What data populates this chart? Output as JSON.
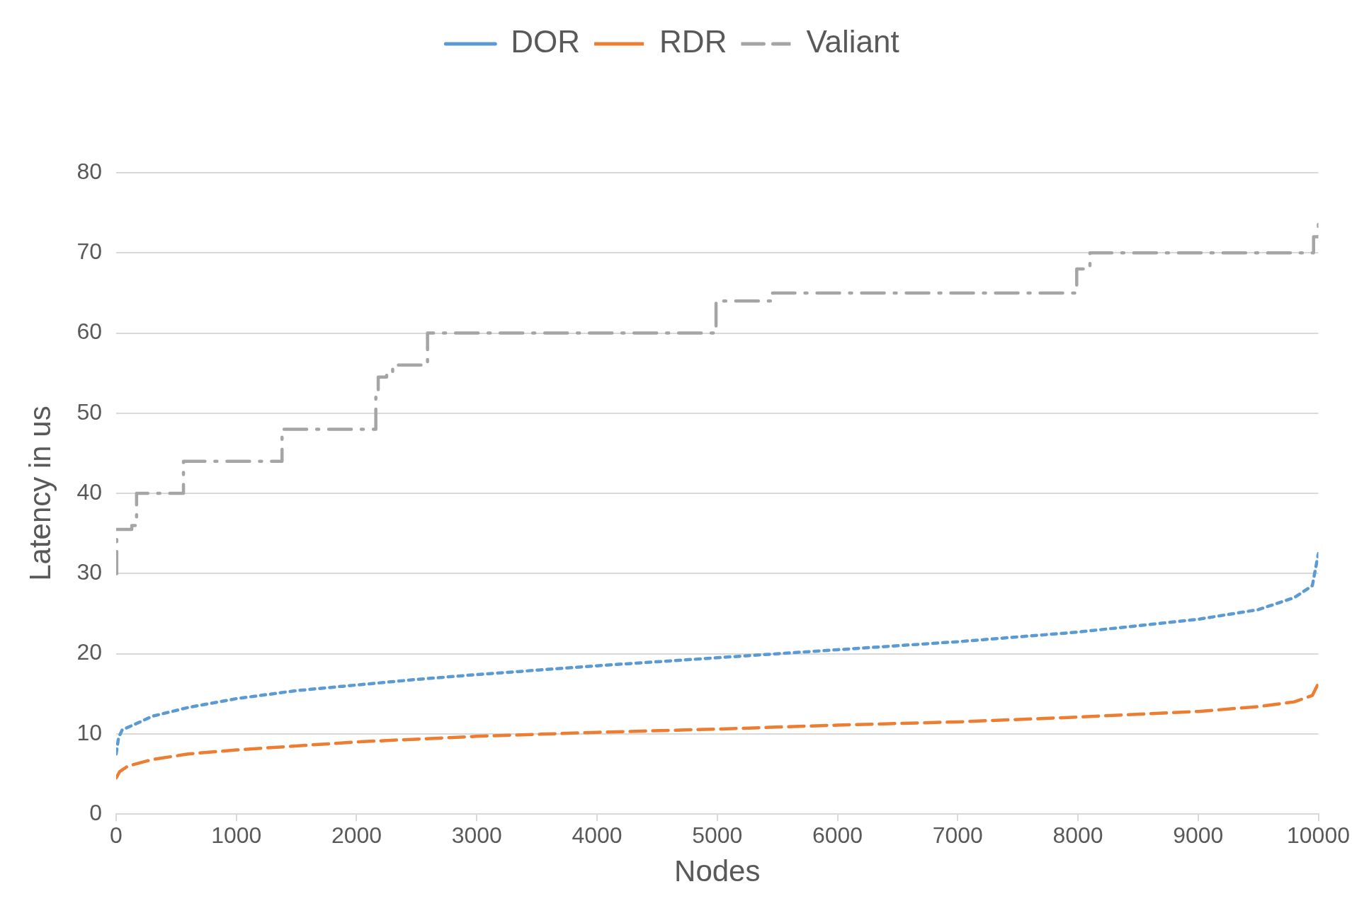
{
  "chart_data": {
    "type": "line",
    "xlabel": "Nodes",
    "ylabel": "Latency in us",
    "xlim": [
      0,
      10000
    ],
    "xticks": [
      0,
      1000,
      2000,
      3000,
      4000,
      5000,
      6000,
      7000,
      8000,
      9000,
      10000
    ],
    "ylim": [
      0,
      80
    ],
    "yticks": [
      0,
      10,
      20,
      30,
      40,
      50,
      60,
      70,
      80
    ],
    "grid": "y",
    "legend": "top",
    "marker": "none",
    "series": [
      {
        "name": "DOR",
        "color": "#5b9bd5",
        "line_style": "dotted",
        "x": [
          0,
          20,
          50,
          200,
          300,
          600,
          1000,
          1500,
          2000,
          2500,
          3000,
          4000,
          5000,
          6000,
          7000,
          8000,
          9000,
          9500,
          9800,
          9950,
          10000
        ],
        "values": [
          7.5,
          9.5,
          10.5,
          11.5,
          12.2,
          13.3,
          14.4,
          15.4,
          16.1,
          16.8,
          17.4,
          18.5,
          19.5,
          20.5,
          21.5,
          22.7,
          24.3,
          25.5,
          27,
          28.5,
          32.5
        ]
      },
      {
        "name": "RDR",
        "color": "#ed7d31",
        "line_style": "dashed",
        "x": [
          0,
          30,
          100,
          300,
          600,
          1000,
          2000,
          3000,
          4000,
          5000,
          6000,
          7000,
          8000,
          9000,
          9500,
          9800,
          9950,
          10000
        ],
        "values": [
          4.5,
          5.3,
          6,
          6.8,
          7.5,
          8,
          9,
          9.7,
          10.2,
          10.6,
          11.1,
          11.5,
          12.1,
          12.8,
          13.4,
          14,
          14.8,
          16.3
        ]
      },
      {
        "name": "Valiant",
        "type": "step",
        "color": "#a5a5a5",
        "line_style": "dashdot",
        "x": [
          0,
          5,
          130,
          170,
          560,
          1380,
          2160,
          2180,
          2250,
          2300,
          2590,
          4990,
          5460,
          7990,
          8100,
          9960,
          10000
        ],
        "values": [
          30,
          35.5,
          36,
          40,
          44,
          48,
          52,
          54.5,
          55,
          56,
          60,
          64,
          65,
          68,
          70,
          72,
          74.5
        ]
      }
    ]
  }
}
